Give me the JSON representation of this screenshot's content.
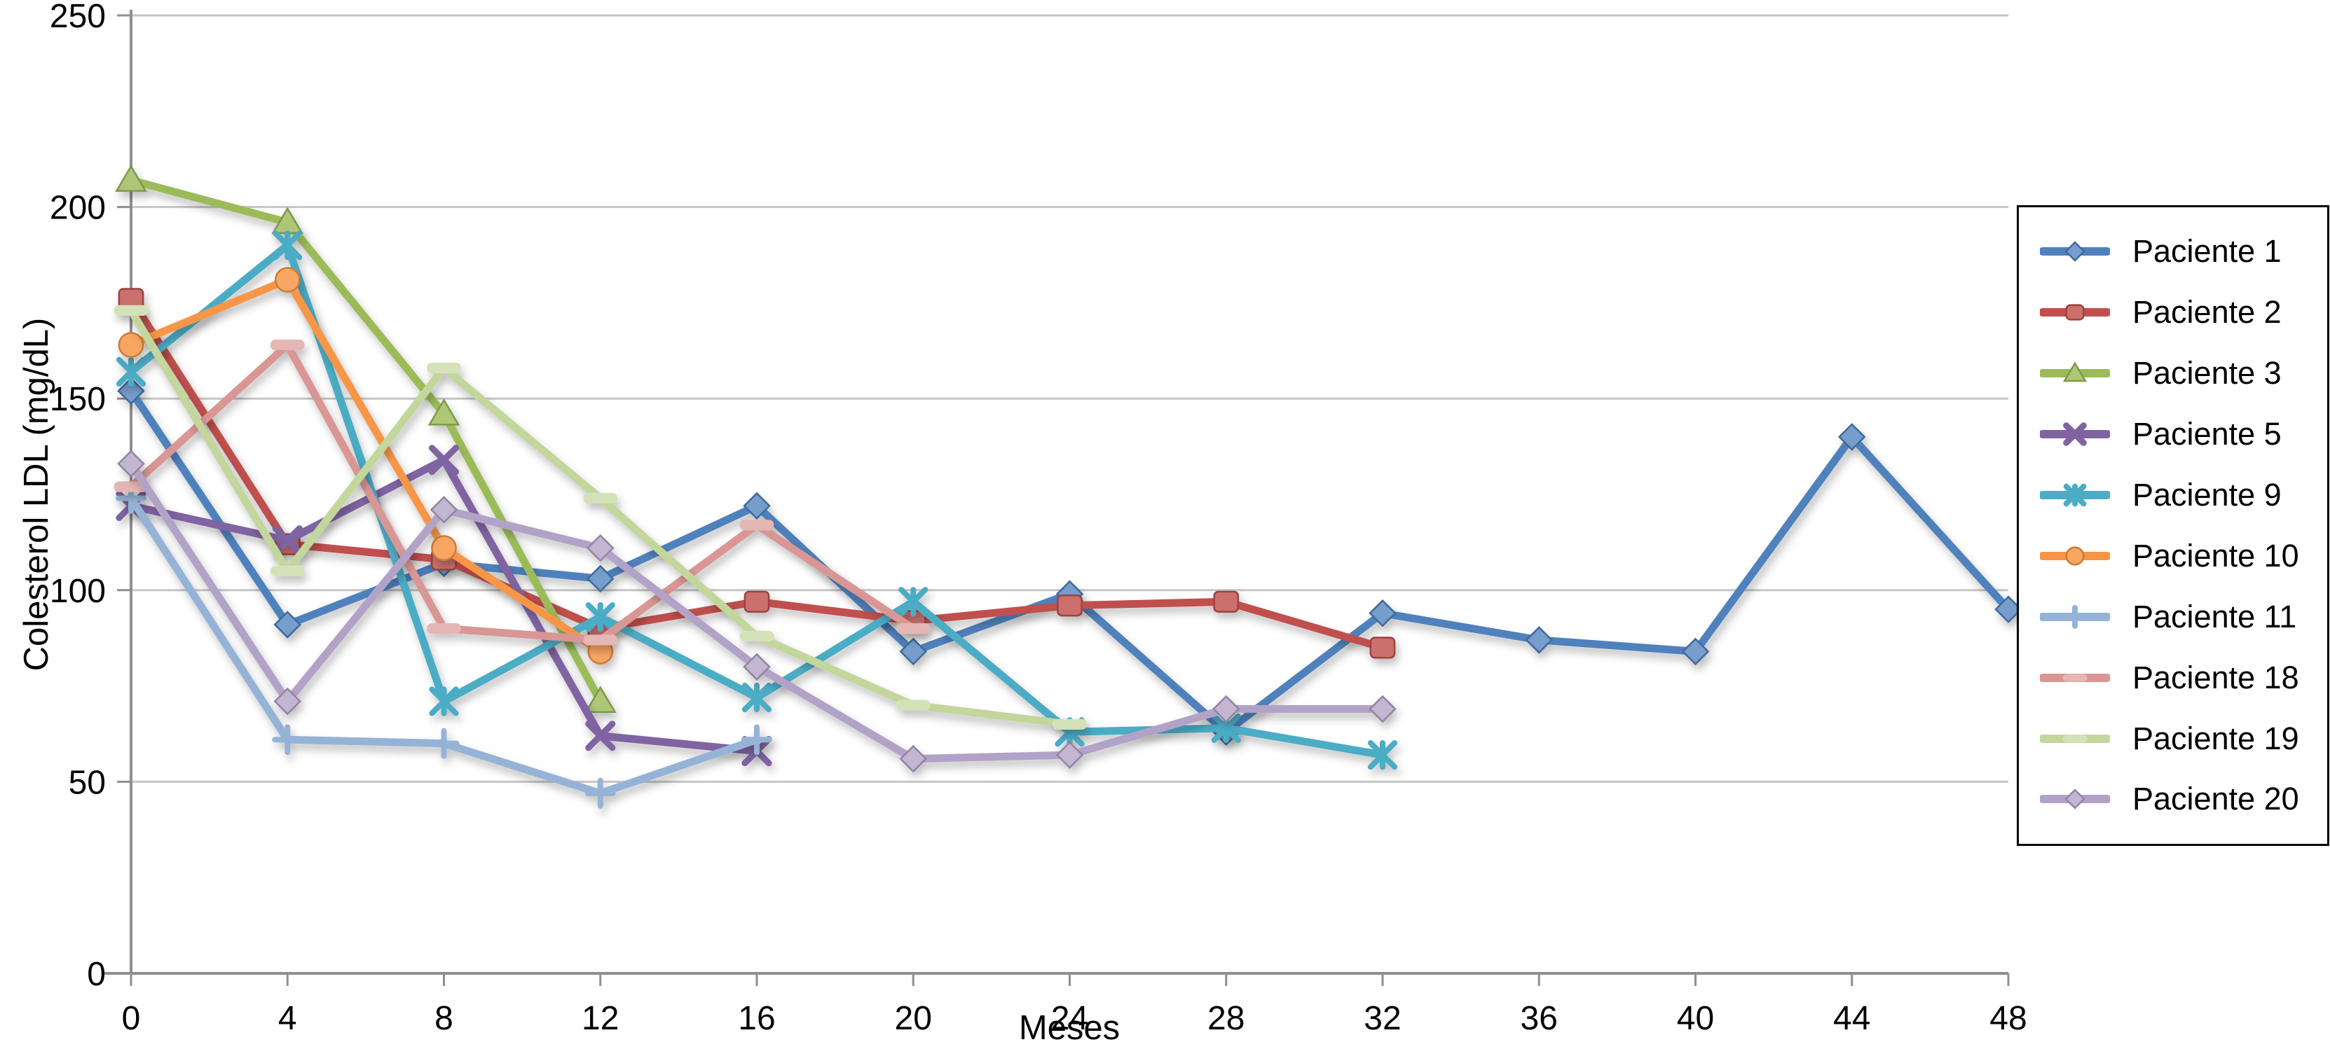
{
  "chart_data": {
    "type": "line",
    "title": "",
    "xlabel": "Meses",
    "ylabel": "Colesterol LDL (mg/dL)",
    "x_ticks": [
      0,
      4,
      8,
      12,
      16,
      20,
      24,
      28,
      32,
      36,
      40,
      44,
      48
    ],
    "y_ticks": [
      0,
      50,
      100,
      150,
      200,
      250
    ],
    "xlim": [
      0,
      48
    ],
    "ylim": [
      0,
      250
    ],
    "grid": "horizontal",
    "legend_position": "right",
    "colors": {
      "grid": "#c6c6c6",
      "axis": "#8f8f8f",
      "text": "#000000",
      "legend_border": "#000000",
      "background": "#ffffff"
    },
    "series": [
      {
        "name": "Paciente 1",
        "color": "#4F81BD",
        "marker": "diamond",
        "x": [
          0,
          4,
          8,
          12,
          16,
          20,
          24,
          28,
          32,
          36,
          40,
          44,
          48
        ],
        "values": [
          152,
          91,
          107,
          103,
          122,
          84,
          99,
          63,
          94,
          87,
          84,
          140,
          95
        ]
      },
      {
        "name": "Paciente 2",
        "color": "#C0504D",
        "marker": "square",
        "x": [
          0,
          4,
          8,
          12,
          16,
          20,
          24,
          28,
          32
        ],
        "values": [
          176,
          112,
          108,
          90,
          97,
          92,
          96,
          97,
          85
        ]
      },
      {
        "name": "Paciente 3",
        "color": "#9BBB59",
        "marker": "triangle",
        "x": [
          0,
          4,
          8,
          12
        ],
        "values": [
          207,
          196,
          146,
          71
        ]
      },
      {
        "name": "Paciente 5",
        "color": "#8064A2",
        "marker": "x",
        "x": [
          0,
          4,
          8,
          12,
          16
        ],
        "values": [
          122,
          113,
          134,
          62,
          58
        ]
      },
      {
        "name": "Paciente 9",
        "color": "#4BACC6",
        "marker": "asterisk",
        "x": [
          0,
          4,
          8,
          12,
          16,
          20,
          24,
          28,
          32
        ],
        "values": [
          157,
          190,
          71,
          93,
          72,
          97,
          63,
          64,
          57
        ]
      },
      {
        "name": "Paciente 10",
        "color": "#F79646",
        "marker": "circle",
        "x": [
          0,
          4,
          8,
          12
        ],
        "values": [
          164,
          181,
          111,
          84
        ]
      },
      {
        "name": "Paciente 11",
        "color": "#95B3D7",
        "marker": "plus",
        "x": [
          0,
          4,
          8,
          12,
          16
        ],
        "values": [
          124,
          61,
          60,
          47,
          61
        ]
      },
      {
        "name": "Paciente 18",
        "color": "#D99694",
        "marker": "dash",
        "x": [
          0,
          4,
          8,
          12,
          16,
          20
        ],
        "values": [
          127,
          164,
          90,
          87,
          117,
          90
        ]
      },
      {
        "name": "Paciente 19",
        "color": "#C3D69B",
        "marker": "dash",
        "x": [
          0,
          4,
          8,
          12,
          16,
          20,
          24
        ],
        "values": [
          173,
          105,
          158,
          124,
          88,
          70,
          65
        ]
      },
      {
        "name": "Paciente 20",
        "color": "#B2A2C7",
        "marker": "diamond",
        "x": [
          0,
          4,
          8,
          12,
          16,
          20,
          24,
          28,
          32
        ],
        "values": [
          133,
          71,
          121,
          111,
          80,
          56,
          57,
          69,
          69
        ]
      }
    ]
  }
}
